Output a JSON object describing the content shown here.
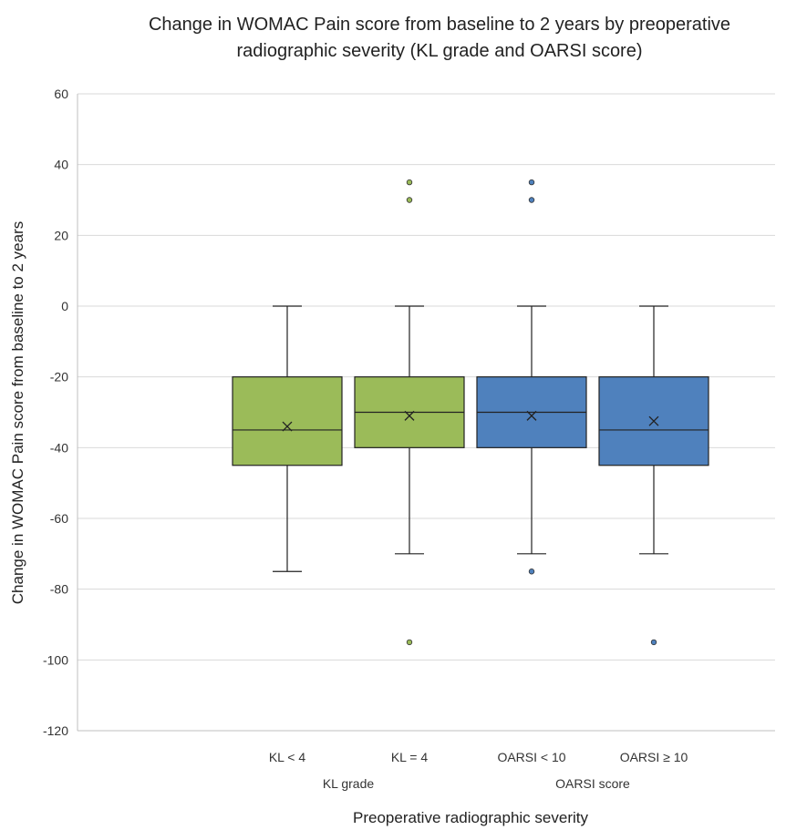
{
  "chart_data": {
    "type": "box",
    "title_lines": [
      "Change in WOMAC Pain score from baseline to 2 years by preoperative",
      "radiographic severity (KL grade and OARSI score)"
    ],
    "xlabel": "Preoperative radiographic severity",
    "ylabel": "Change in WOMAC Pain score from baseline to 2 years",
    "ylim": [
      -120,
      60
    ],
    "yticks": [
      60,
      40,
      20,
      0,
      -20,
      -40,
      -60,
      -80,
      -100,
      -120
    ],
    "grid": "horizontal",
    "groups": [
      {
        "label": "KL grade",
        "categories": [
          0,
          1
        ]
      },
      {
        "label": "OARSI score",
        "categories": [
          2,
          3
        ]
      }
    ],
    "boxes": [
      {
        "label": "KL < 4",
        "color": "#9BBB59",
        "whisker_low": -75,
        "q1": -45,
        "median": -35,
        "q3": -20,
        "whisker_high": 0,
        "mean": -34,
        "outliers": []
      },
      {
        "label": "KL = 4",
        "color": "#9BBB59",
        "whisker_low": -70,
        "q1": -40,
        "median": -30,
        "q3": -20,
        "whisker_high": 0,
        "mean": -31,
        "outliers": [
          35,
          30,
          -95
        ]
      },
      {
        "label": "OARSI < 10",
        "color": "#4F81BD",
        "whisker_low": -70,
        "q1": -40,
        "median": -30,
        "q3": -20,
        "whisker_high": 0,
        "mean": -31,
        "outliers": [
          35,
          30,
          -75
        ]
      },
      {
        "label": "OARSI ≥ 10",
        "color": "#4F81BD",
        "whisker_low": -70,
        "q1": -45,
        "median": -35,
        "q3": -20,
        "whisker_high": 0,
        "mean": -32.5,
        "outliers": [
          -95
        ]
      }
    ]
  }
}
